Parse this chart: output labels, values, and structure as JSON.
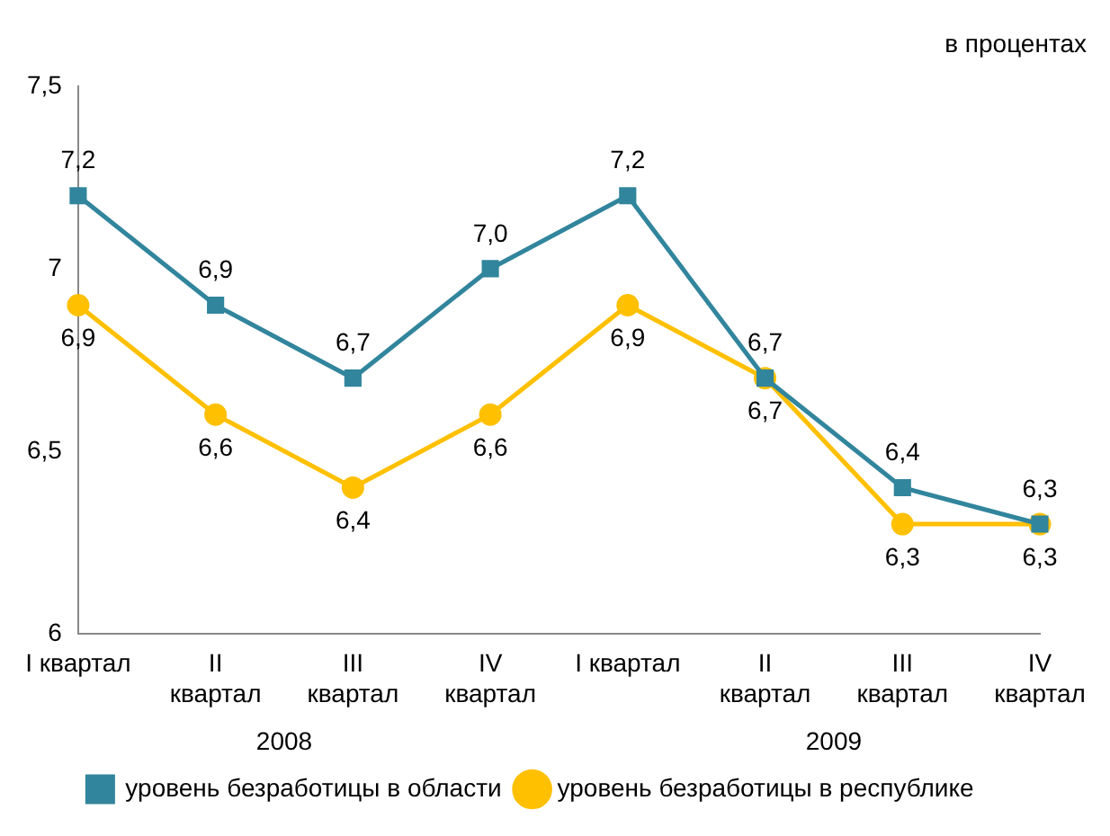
{
  "chart_data": {
    "type": "line",
    "subtitle": "в процентах",
    "categories": [
      "I квартал",
      "II квартал",
      "III квартал",
      "IV квартал",
      "I квартал",
      "II квартал",
      "III квартал",
      "IV квартал"
    ],
    "annotations": [
      "2008",
      "2009"
    ],
    "series": [
      {
        "name": "уровень безработицы в области",
        "color": "#31859c",
        "marker": "square",
        "values": [
          7.2,
          6.9,
          6.7,
          7.0,
          7.2,
          6.7,
          6.4,
          6.3
        ],
        "value_labels": [
          "7,2",
          "6,9",
          "6,7",
          "7,0",
          "7,2",
          "6,7",
          "6,4",
          "6,3"
        ]
      },
      {
        "name": "уровень безработицы в республике",
        "color": "#ffc000",
        "marker": "circle",
        "values": [
          6.9,
          6.6,
          6.4,
          6.6,
          6.9,
          6.7,
          6.3,
          6.3
        ],
        "value_labels": [
          "6,9",
          "6,6",
          "6,4",
          "6,6",
          "6,9",
          "6,7",
          "6,3",
          "6,3"
        ]
      }
    ],
    "ylim": [
      6,
      7.5
    ],
    "yticks": [
      6,
      {
        "value": 6.5,
        "label": "6,5"
      },
      7,
      {
        "value": 7.5,
        "label": "7,5"
      }
    ],
    "grid": false,
    "legend": "bottom",
    "line_style": "solid"
  }
}
